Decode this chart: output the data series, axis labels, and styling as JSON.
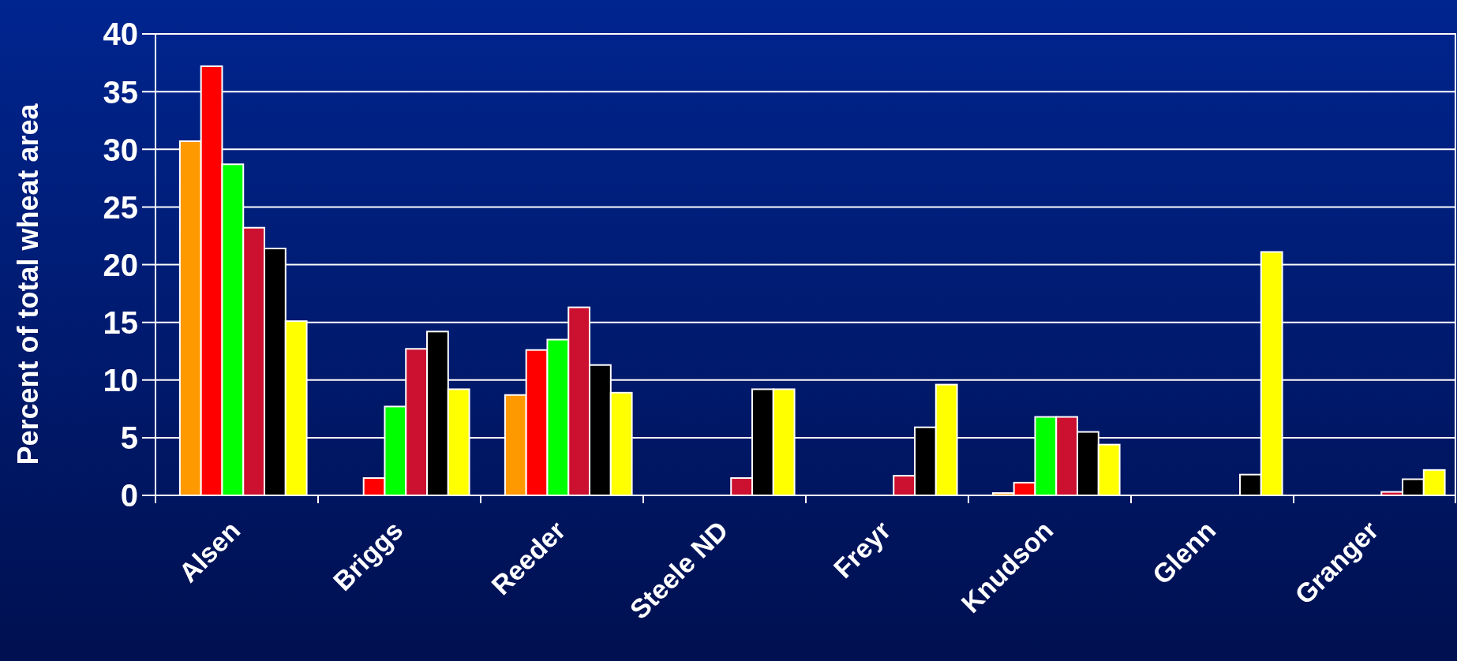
{
  "chart_data": {
    "type": "bar",
    "ylabel": "Percent of total wheat area",
    "categories": [
      "Alsen",
      "Briggs",
      "Reeder",
      "Steele ND",
      "Freyr",
      "Knudson",
      "Glenn",
      "Granger"
    ],
    "series": [
      {
        "color": "#ff9900",
        "values": [
          30.7,
          null,
          8.7,
          null,
          null,
          0.2,
          null,
          null
        ]
      },
      {
        "color": "#ff0000",
        "values": [
          37.2,
          1.5,
          12.6,
          null,
          null,
          1.1,
          null,
          null
        ]
      },
      {
        "color": "#00ff00",
        "values": [
          28.7,
          7.7,
          13.5,
          null,
          null,
          6.8,
          null,
          null
        ]
      },
      {
        "color": "#cc1030",
        "values": [
          23.2,
          12.7,
          16.3,
          1.5,
          1.7,
          6.8,
          null,
          0.3
        ]
      },
      {
        "color": "#000000",
        "values": [
          21.4,
          14.2,
          11.3,
          9.2,
          5.9,
          5.5,
          1.8,
          1.4
        ]
      },
      {
        "color": "#ffff00",
        "values": [
          15.1,
          9.2,
          8.9,
          9.2,
          9.6,
          4.4,
          21.1,
          2.2
        ]
      }
    ],
    "ylim": [
      0,
      40
    ],
    "yticks": [
      0,
      5,
      10,
      15,
      20,
      25,
      30,
      35,
      40
    ],
    "grid": "y"
  }
}
